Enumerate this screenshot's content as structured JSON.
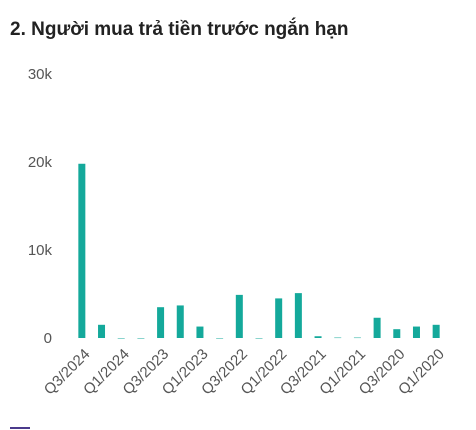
{
  "chart_data": {
    "type": "bar",
    "title": "2. Người mua trả tiền trước ngắn hạn",
    "categories": [
      "Q3/2024",
      null,
      "Q1/2024",
      null,
      "Q3/2023",
      null,
      "Q1/2023",
      null,
      "Q3/2022",
      null,
      "Q1/2022",
      null,
      "Q3/2021",
      null,
      "Q1/2021",
      null,
      "Q3/2020",
      null,
      "Q1/2020"
    ],
    "values": [
      19800,
      1500,
      0,
      0,
      3500,
      3700,
      1300,
      0,
      4900,
      0,
      4500,
      5100,
      200,
      50,
      50,
      2300,
      1000,
      1300,
      1500
    ],
    "color": "#14a99b",
    "ylim": [
      0,
      30000
    ],
    "yticks": [
      0,
      {
        "value": 10000,
        "label": "10k"
      },
      {
        "value": 20000,
        "label": "20k"
      },
      {
        "value": 30000,
        "label": "30k"
      }
    ],
    "grid": false
  }
}
